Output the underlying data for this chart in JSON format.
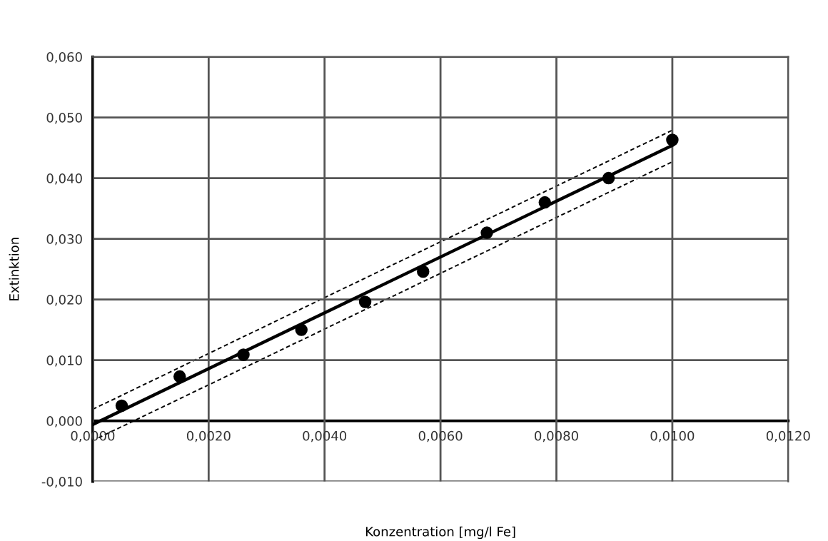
{
  "chart_data": {
    "type": "scatter",
    "xlabel": "Konzentration [mg/l Fe]",
    "ylabel": "Extinktion",
    "x": [
      0.0005,
      0.0015,
      0.0026,
      0.0036,
      0.0047,
      0.0057,
      0.0068,
      0.0078,
      0.0089,
      0.01
    ],
    "series": [
      {
        "color": "#000000",
        "marker": "circle",
        "values": [
          0.0025,
          0.0073,
          0.0109,
          0.015,
          0.0196,
          0.0246,
          0.031,
          0.036,
          0.04,
          0.0463
        ]
      },
      {
        "type": "line",
        "color": "#000000",
        "line_style": "solid",
        "x": [
          0.0,
          0.01
        ],
        "values": [
          -0.0006,
          0.0454
        ]
      },
      {
        "type": "line",
        "color": "#000000",
        "line_style": "dashed",
        "x": [
          0.0,
          0.01
        ],
        "values": [
          0.0019,
          0.0479
        ]
      },
      {
        "type": "line",
        "color": "#000000",
        "line_style": "dashed",
        "x": [
          0.0001,
          0.01
        ],
        "values": [
          -0.0028,
          0.0427
        ]
      }
    ],
    "xlim": [
      0,
      0.012
    ],
    "xticks": [
      {
        "value": 0,
        "label": "0,0000"
      },
      {
        "value": 0.002,
        "label": "0,0020"
      },
      {
        "value": 0.004,
        "label": "0,0040"
      },
      {
        "value": 0.006,
        "label": "0,0060"
      },
      {
        "value": 0.008,
        "label": "0,0080"
      },
      {
        "value": 0.01,
        "label": "0,0100"
      },
      {
        "value": 0.012,
        "label": "0,0120"
      }
    ],
    "ylim": [
      -0.01,
      0.06
    ],
    "yticks": [
      {
        "value": -0.01,
        "label": "-0,010"
      },
      {
        "value": 0,
        "label": "0,000"
      },
      {
        "value": 0.01,
        "label": "0,010"
      },
      {
        "value": 0.02,
        "label": "0,020"
      },
      {
        "value": 0.03,
        "label": "0,030"
      },
      {
        "value": 0.04,
        "label": "0,040"
      },
      {
        "value": 0.05,
        "label": "0,050"
      },
      {
        "value": 0.06,
        "label": "0,060"
      }
    ],
    "grid": true,
    "legend": false
  }
}
